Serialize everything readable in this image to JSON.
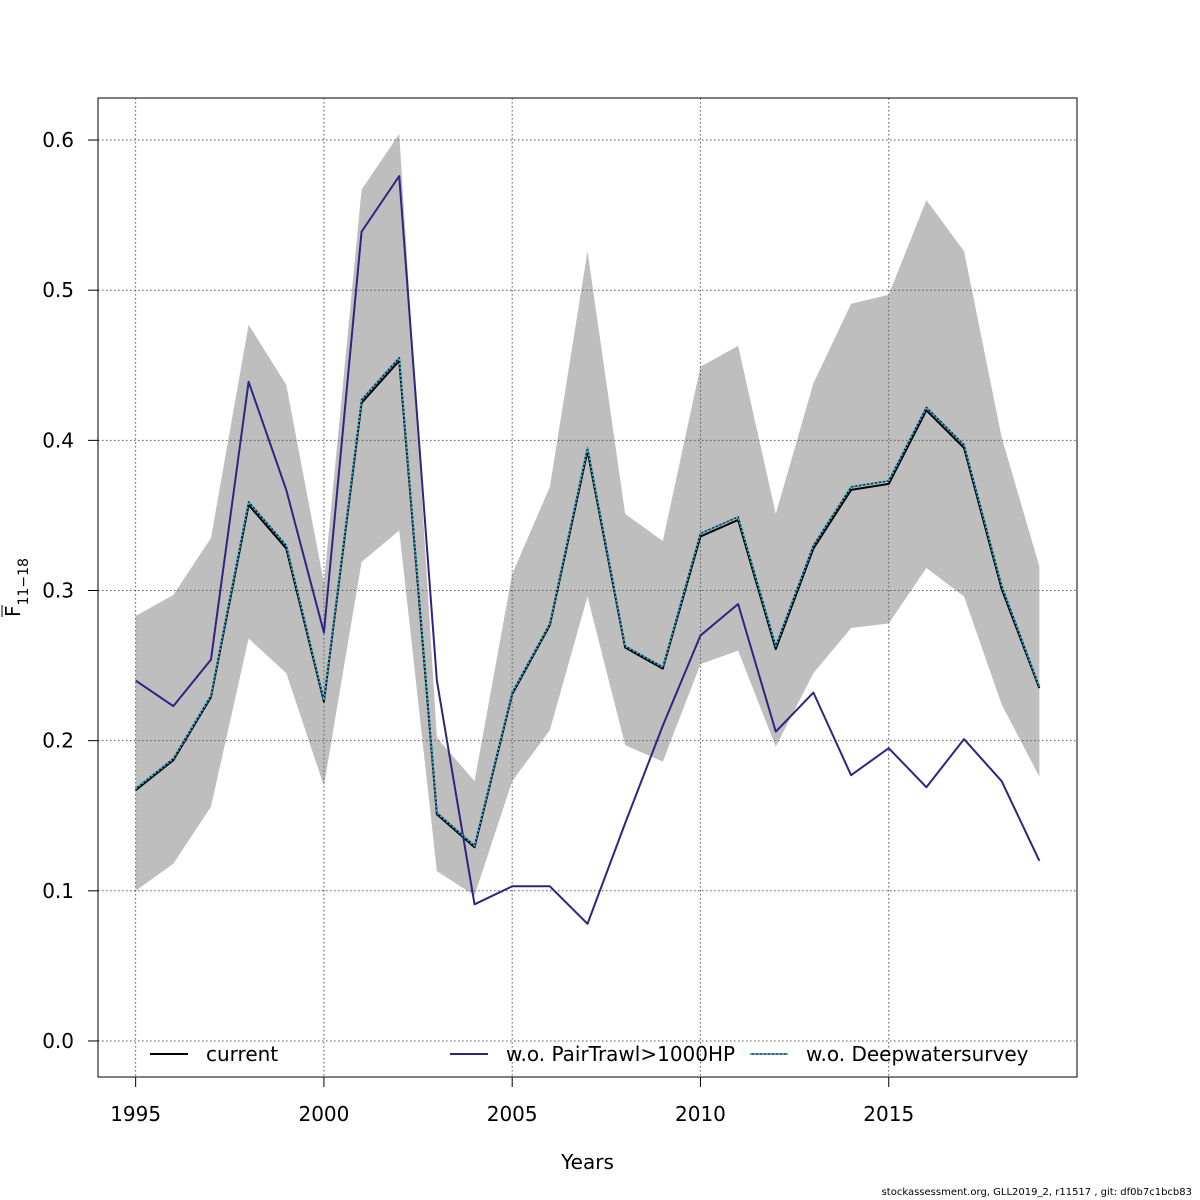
{
  "chart_data": {
    "type": "line",
    "xlabel": "Years",
    "ylabel": "F",
    "ylabel_sub": "11−18",
    "xlim": [
      1994,
      2020
    ],
    "ylim": [
      -0.024,
      0.628
    ],
    "xticks": [
      1995,
      2000,
      2005,
      2010,
      2015
    ],
    "yticks": [
      0.0,
      0.1,
      0.2,
      0.3,
      0.4,
      0.5,
      0.6
    ],
    "ytick_labels": [
      "0.0",
      "0.1",
      "0.2",
      "0.3",
      "0.4",
      "0.5",
      "0.6"
    ],
    "grid": true,
    "legend_position": "bottom",
    "x": [
      1995,
      1996,
      1997,
      1998,
      1999,
      2000,
      2001,
      2002,
      2003,
      2004,
      2005,
      2006,
      2007,
      2008,
      2009,
      2010,
      2011,
      2012,
      2013,
      2014,
      2015,
      2016,
      2017,
      2018,
      2019
    ],
    "band": {
      "color": "#bebebe",
      "upper": [
        0.283,
        0.297,
        0.335,
        0.477,
        0.437,
        0.305,
        0.567,
        0.604,
        0.202,
        0.173,
        0.311,
        0.369,
        0.526,
        0.351,
        0.333,
        0.449,
        0.463,
        0.351,
        0.438,
        0.491,
        0.497,
        0.56,
        0.526,
        0.402,
        0.316
      ],
      "lower": [
        0.1,
        0.118,
        0.156,
        0.268,
        0.245,
        0.17,
        0.319,
        0.34,
        0.113,
        0.097,
        0.173,
        0.207,
        0.296,
        0.197,
        0.186,
        0.251,
        0.26,
        0.196,
        0.245,
        0.275,
        0.278,
        0.315,
        0.296,
        0.224,
        0.176
      ]
    },
    "series": [
      {
        "name": "current",
        "color": "#000000",
        "style": "solid",
        "values": [
          0.167,
          0.187,
          0.229,
          0.357,
          0.328,
          0.226,
          0.425,
          0.453,
          0.151,
          0.129,
          0.231,
          0.277,
          0.393,
          0.262,
          0.248,
          0.336,
          0.347,
          0.261,
          0.328,
          0.367,
          0.371,
          0.42,
          0.395,
          0.301,
          0.235
        ]
      },
      {
        "name": "w.o. PairTrawl>1000HP",
        "color": "#2e2482",
        "style": "solid",
        "values": [
          0.24,
          0.223,
          0.254,
          0.439,
          0.367,
          0.272,
          0.539,
          0.576,
          0.24,
          0.091,
          0.103,
          0.103,
          0.078,
          0.145,
          0.21,
          0.27,
          0.291,
          0.206,
          0.232,
          0.177,
          0.195,
          0.169,
          0.201,
          0.173,
          0.12
        ]
      },
      {
        "name": "w.o. Deepwatersurvey",
        "color": "#29b7e6",
        "style": "dotted",
        "values": [
          0.168,
          0.188,
          0.23,
          0.359,
          0.33,
          0.227,
          0.427,
          0.455,
          0.152,
          0.13,
          0.232,
          0.278,
          0.395,
          0.263,
          0.249,
          0.338,
          0.349,
          0.263,
          0.33,
          0.369,
          0.373,
          0.422,
          0.397,
          0.303,
          0.236
        ]
      }
    ]
  },
  "footer": "stockassessment.org, GLL2019_2, r11517 , git: df0b7c1bcb83"
}
